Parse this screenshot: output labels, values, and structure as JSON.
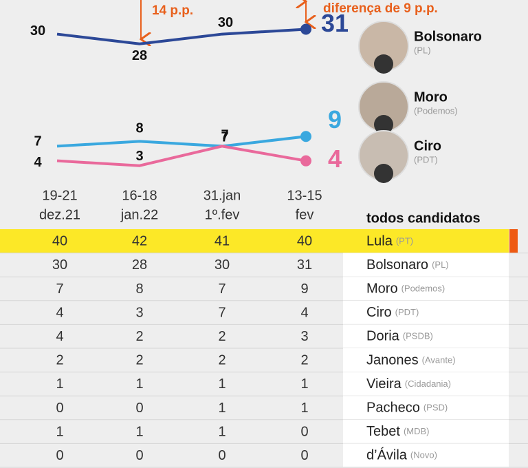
{
  "chart_data": {
    "type": "line",
    "categories": [
      [
        "19-21",
        "dez.21"
      ],
      [
        "16-18",
        "jan.22"
      ],
      [
        "31.jan",
        "1º.fev"
      ],
      [
        "13-15",
        "fev"
      ]
    ],
    "series": [
      {
        "name": "Bolsonaro",
        "party": "(PL)",
        "color": "#2c4897",
        "values": [
          30,
          28,
          30,
          31
        ]
      },
      {
        "name": "Moro",
        "party": "(Podemos)",
        "color": "#3aa8df",
        "values": [
          7,
          8,
          7,
          9
        ]
      },
      {
        "name": "Ciro",
        "party": "(PDT)",
        "color": "#e9699b",
        "values": [
          4,
          3,
          7,
          4
        ]
      }
    ],
    "ylim": [
      0,
      37
    ],
    "annotations": [
      "14 p.p.",
      "diferença de 9 p.p."
    ]
  },
  "table": {
    "title": "todos candidatos",
    "rows": [
      {
        "name": "Lula",
        "party": "(PT)",
        "values": [
          40,
          42,
          41,
          40
        ]
      },
      {
        "name": "Bolsonaro",
        "party": "(PL)",
        "values": [
          30,
          28,
          30,
          31
        ]
      },
      {
        "name": "Moro",
        "party": "(Podemos)",
        "values": [
          7,
          8,
          7,
          9
        ]
      },
      {
        "name": "Ciro",
        "party": "(PDT)",
        "values": [
          4,
          3,
          7,
          4
        ]
      },
      {
        "name": "Doria",
        "party": "(PSDB)",
        "values": [
          4,
          2,
          2,
          3
        ]
      },
      {
        "name": "Janones",
        "party": "(Avante)",
        "values": [
          2,
          2,
          2,
          2
        ]
      },
      {
        "name": "Vieira",
        "party": "(Cidadania)",
        "values": [
          1,
          1,
          1,
          1
        ]
      },
      {
        "name": "Pacheco",
        "party": "(PSD)",
        "values": [
          0,
          0,
          1,
          1
        ]
      },
      {
        "name": "Tebet",
        "party": "(MDB)",
        "values": [
          1,
          1,
          1,
          0
        ]
      },
      {
        "name": "d’Ávila",
        "party": "(Novo)",
        "values": [
          0,
          0,
          0,
          0
        ]
      }
    ]
  }
}
